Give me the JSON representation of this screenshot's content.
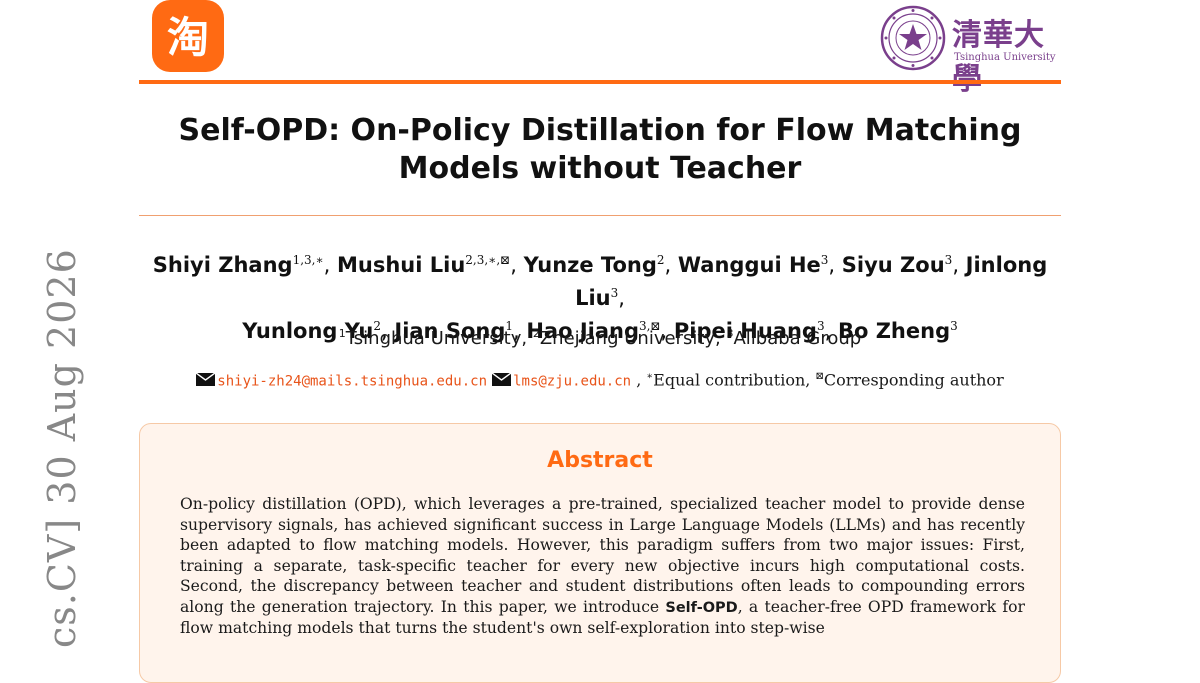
{
  "header": {
    "left_logo": {
      "icon": "taobao-icon",
      "glyph": "淘",
      "color": "#ff6a13"
    },
    "right_logo": {
      "icon": "tsinghua-seal-icon",
      "chinese_name": "清華大學",
      "english_name": "Tsinghua University",
      "color": "#7a3f8c"
    }
  },
  "paper": {
    "title_line1": "Self-OPD: On-Policy Distillation for Flow Matching",
    "title_line2": "Models without Teacher",
    "authors": [
      {
        "name": "Shiyi Zhang",
        "sup": "1,3,∗"
      },
      {
        "name": "Mushui Liu",
        "sup": "2,3,∗,⊠"
      },
      {
        "name": "Yunze Tong",
        "sup": "2"
      },
      {
        "name": "Wanggui He",
        "sup": "3"
      },
      {
        "name": "Siyu Zou",
        "sup": "3"
      },
      {
        "name": "Jinlong Liu",
        "sup": "3"
      },
      {
        "name": "Yunlong Yu",
        "sup": "2"
      },
      {
        "name": "Jian Song",
        "sup": "1"
      },
      {
        "name": "Hao Jiang",
        "sup": "3,⊠"
      },
      {
        "name": "Pipei Huang",
        "sup": "3"
      },
      {
        "name": "Bo Zheng",
        "sup": "3"
      }
    ],
    "affiliations": [
      {
        "sup": "1",
        "name": "Tsinghua University"
      },
      {
        "sup": "2",
        "name": "Zhejiang University"
      },
      {
        "sup": "3",
        "name": "Alibaba Group"
      }
    ],
    "contact": {
      "email1": "shiyi-zh24@mails.tsinghua.edu.cn",
      "email2": "lms@zju.edu.cn",
      "equal_mark": "∗",
      "equal_text": "Equal contribution",
      "corr_mark": "⊠",
      "corr_text": "Corresponding author"
    },
    "abstract_heading": "Abstract",
    "abstract_text_before": "On-policy distillation (OPD), which leverages a pre-trained, specialized teacher model to provide dense supervisory signals, has achieved significant success in Large Language Models (LLMs) and has recently been adapted to flow matching models. However, this paradigm suffers from two major issues: First, training a separate, task-specific teacher for every new objective incurs high computational costs. Second, the discrepancy between teacher and student distributions often leads to compounding errors along the generation trajectory. In this paper, we introduce ",
    "abstract_bold": "Self-OPD",
    "abstract_text_after": ", a teacher-free OPD framework for flow matching models that turns the student's own self-exploration into step-wise"
  },
  "sidebar": {
    "arxiv_stamp": "cs.CV]  30 Aug 2026"
  }
}
